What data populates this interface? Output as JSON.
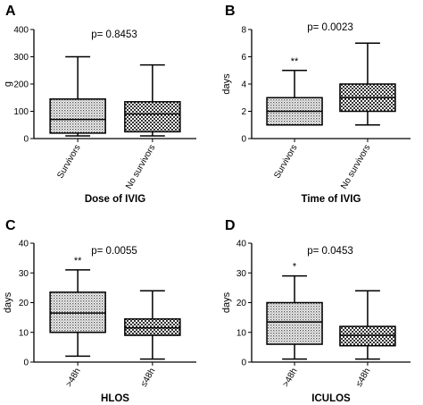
{
  "chart_data": [
    {
      "panel": "A",
      "type": "box",
      "pvalue": "p= 0.8453",
      "ylabel": "g",
      "xlabel": "Dose of IVIG",
      "ylim": [
        0,
        400
      ],
      "yticks": [
        0,
        100,
        200,
        300,
        400
      ],
      "categories": [
        "Survivors",
        "No survivors"
      ],
      "boxes": [
        {
          "min": 10,
          "q1": 20,
          "median": 70,
          "q3": 145,
          "max": 300,
          "pattern": "dots",
          "star": ""
        },
        {
          "min": 10,
          "q1": 25,
          "median": 90,
          "q3": 135,
          "max": 270,
          "pattern": "checker",
          "star": ""
        }
      ]
    },
    {
      "panel": "B",
      "type": "box",
      "pvalue": "p= 0.0023",
      "ylabel": "days",
      "xlabel": "Time of IVIG",
      "ylim": [
        0,
        8
      ],
      "yticks": [
        0,
        2,
        4,
        6,
        8
      ],
      "categories": [
        "Survivors",
        "No survivors"
      ],
      "boxes": [
        {
          "min": 1,
          "q1": 1,
          "median": 2,
          "q3": 3,
          "max": 5,
          "pattern": "dots",
          "star": "**"
        },
        {
          "min": 1,
          "q1": 2,
          "median": 3,
          "q3": 4,
          "max": 7,
          "pattern": "checker",
          "star": ""
        }
      ]
    },
    {
      "panel": "C",
      "type": "box",
      "pvalue": "p= 0.0055",
      "ylabel": "days",
      "xlabel": "HLOS",
      "ylim": [
        0,
        40
      ],
      "yticks": [
        0,
        10,
        20,
        30,
        40
      ],
      "categories": [
        ">48h",
        "≤48h"
      ],
      "boxes": [
        {
          "min": 2,
          "q1": 10,
          "median": 16.5,
          "q3": 23.5,
          "max": 31,
          "pattern": "dots",
          "star": "**"
        },
        {
          "min": 1,
          "q1": 9,
          "median": 11.5,
          "q3": 14.5,
          "max": 24,
          "pattern": "checker",
          "star": ""
        }
      ]
    },
    {
      "panel": "D",
      "type": "box",
      "pvalue": "p= 0.0453",
      "ylabel": "days",
      "xlabel": "ICULOS",
      "ylim": [
        0,
        40
      ],
      "yticks": [
        0,
        10,
        20,
        30,
        40
      ],
      "categories": [
        ">48h",
        "≤48h"
      ],
      "boxes": [
        {
          "min": 1,
          "q1": 6,
          "median": 13.5,
          "q3": 20,
          "max": 29,
          "pattern": "dots",
          "star": "*"
        },
        {
          "min": 1,
          "q1": 5.5,
          "median": 9,
          "q3": 12,
          "max": 24,
          "pattern": "checker",
          "star": ""
        }
      ]
    }
  ]
}
